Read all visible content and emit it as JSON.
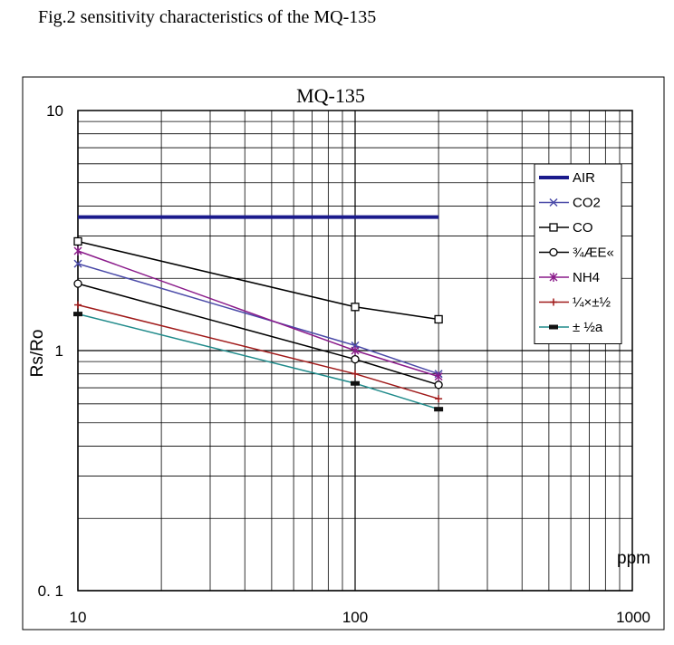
{
  "caption": "Fig.2 sensitivity characteristics of the MQ-135",
  "chart_data": {
    "type": "line",
    "title": "MQ-135",
    "xlabel": "ppm",
    "ylabel": "Rs/Ro",
    "xscale": "log",
    "yscale": "log",
    "xlim": [
      10,
      1000
    ],
    "ylim": [
      0.1,
      10
    ],
    "xticks": [
      "10",
      "100",
      "1000"
    ],
    "yticks": [
      "0. 1",
      "1",
      "10"
    ],
    "grid": true,
    "legend_position": "top-right",
    "series": [
      {
        "name": "AIR",
        "color": "#1a1a8c",
        "marker": "none",
        "width": 4,
        "points": [
          [
            10,
            3.6
          ],
          [
            200,
            3.6
          ]
        ]
      },
      {
        "name": "CO2",
        "color": "#4a4aa8",
        "marker": "x",
        "points": [
          [
            10,
            2.3
          ],
          [
            100,
            1.05
          ],
          [
            200,
            0.8
          ]
        ]
      },
      {
        "name": "CO",
        "color": "#000000",
        "marker": "square",
        "points": [
          [
            10,
            2.85
          ],
          [
            100,
            1.52
          ],
          [
            200,
            1.35
          ]
        ]
      },
      {
        "name": "¾ÆE«",
        "color": "#000000",
        "marker": "circle",
        "points": [
          [
            10,
            1.9
          ],
          [
            100,
            0.92
          ],
          [
            200,
            0.72
          ]
        ]
      },
      {
        "name": "NH4",
        "color": "#8a1a8a",
        "marker": "star",
        "points": [
          [
            10,
            2.6
          ],
          [
            100,
            1.0
          ],
          [
            200,
            0.78
          ]
        ]
      },
      {
        "name": "¼×±½",
        "color": "#a01a1a",
        "marker": "plus",
        "points": [
          [
            10,
            1.55
          ],
          [
            100,
            0.8
          ],
          [
            200,
            0.63
          ]
        ]
      },
      {
        "name": "± ½a",
        "color": "#1f8a8a",
        "marker": "bar",
        "points": [
          [
            10,
            1.42
          ],
          [
            100,
            0.73
          ],
          [
            200,
            0.57
          ]
        ]
      }
    ]
  }
}
